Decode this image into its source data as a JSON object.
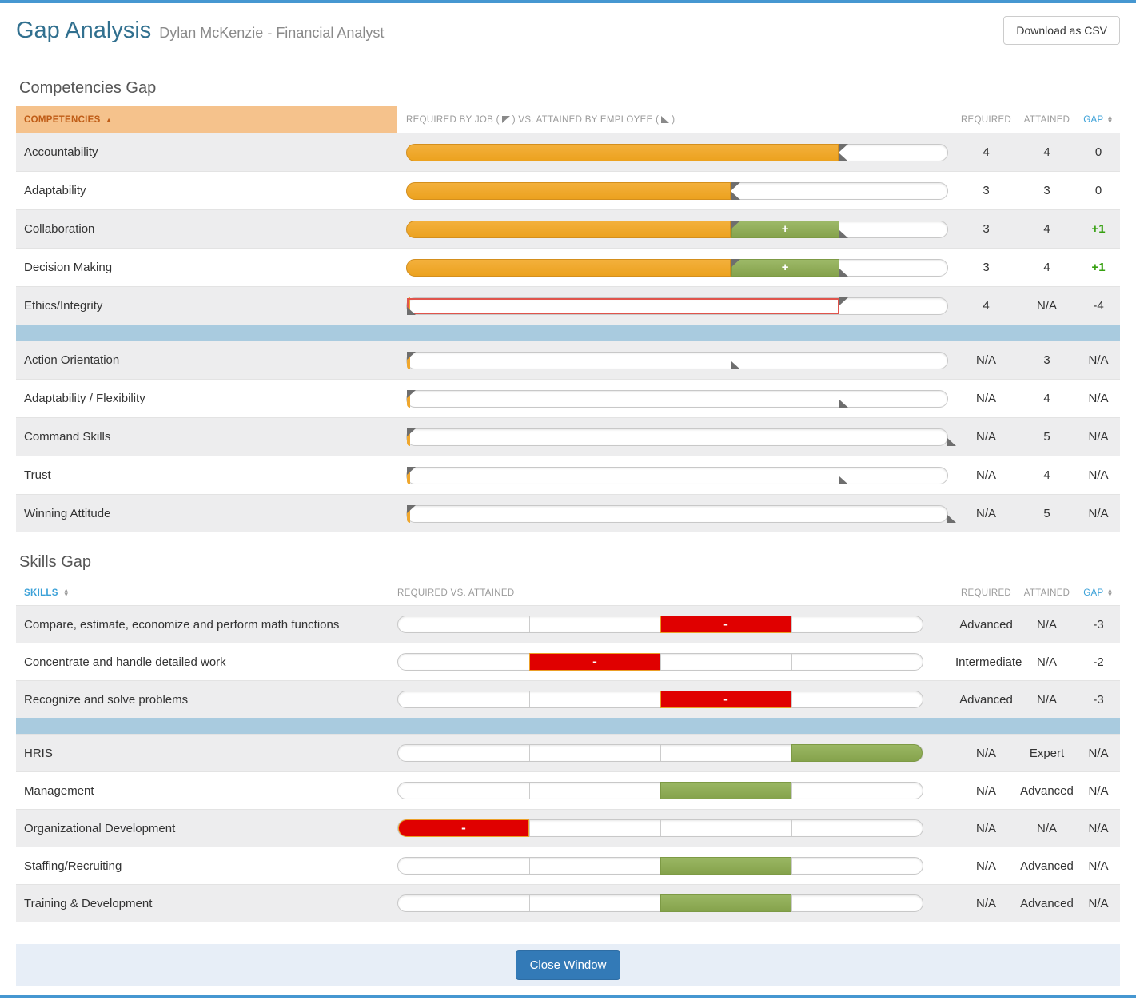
{
  "header": {
    "title": "Gap Analysis",
    "subtitle": "Dylan McKenzie - Financial Analyst",
    "download_label": "Download as CSV"
  },
  "competencies": {
    "section_title": "Competencies Gap",
    "col_name": "COMPETENCIES",
    "col_bar_pre": "REQUIRED BY JOB (",
    "col_bar_mid": ") VS. ATTAINED BY EMPLOYEE (",
    "col_bar_post": ")",
    "col_required": "REQUIRED",
    "col_attained": "ATTAINED",
    "col_gap": "GAP",
    "scale_max": 5,
    "rows": [
      {
        "name": "Accountability",
        "required": "4",
        "attained": "4",
        "gap": "0",
        "gap_positive": false,
        "bar": {
          "orange_to": 4,
          "req_flag": 4,
          "att_flag": 4
        }
      },
      {
        "name": "Adaptability",
        "required": "3",
        "attained": "3",
        "gap": "0",
        "gap_positive": false,
        "bar": {
          "orange_to": 3,
          "req_flag": 3,
          "att_flag": 3
        }
      },
      {
        "name": "Collaboration",
        "required": "3",
        "attained": "4",
        "gap": "+1",
        "gap_positive": true,
        "bar": {
          "orange_to": 3,
          "green_from": 3,
          "green_to": 4,
          "green_label": "+",
          "req_flag": 3,
          "att_flag": 4
        }
      },
      {
        "name": "Decision Making",
        "required": "3",
        "attained": "4",
        "gap": "+1",
        "gap_positive": true,
        "bar": {
          "orange_to": 3,
          "green_from": 3,
          "green_to": 4,
          "green_label": "+",
          "req_flag": 3,
          "att_flag": 4
        }
      },
      {
        "name": "Ethics/Integrity",
        "required": "4",
        "attained": "N/A",
        "gap": "-4",
        "gap_positive": false,
        "bar": {
          "sliver": true,
          "red_outline_to": 4,
          "req_flag": 4,
          "att_flag": 0
        }
      },
      {
        "divider": true
      },
      {
        "name": "Action Orientation",
        "required": "N/A",
        "attained": "3",
        "gap": "N/A",
        "gap_positive": false,
        "bar": {
          "sliver": true,
          "req_flag": 0,
          "att_flag": 3
        }
      },
      {
        "name": "Adaptability / Flexibility",
        "required": "N/A",
        "attained": "4",
        "gap": "N/A",
        "gap_positive": false,
        "bar": {
          "sliver": true,
          "req_flag": 0,
          "att_flag": 4
        }
      },
      {
        "name": "Command Skills",
        "required": "N/A",
        "attained": "5",
        "gap": "N/A",
        "gap_positive": false,
        "bar": {
          "sliver": true,
          "req_flag": 0,
          "att_flag": 5
        }
      },
      {
        "name": "Trust",
        "required": "N/A",
        "attained": "4",
        "gap": "N/A",
        "gap_positive": false,
        "bar": {
          "sliver": true,
          "req_flag": 0,
          "att_flag": 4
        }
      },
      {
        "name": "Winning Attitude",
        "required": "N/A",
        "attained": "5",
        "gap": "N/A",
        "gap_positive": false,
        "bar": {
          "sliver": true,
          "req_flag": 0,
          "att_flag": 5
        }
      }
    ]
  },
  "skills": {
    "section_title": "Skills Gap",
    "col_name": "SKILLS",
    "col_bar": "REQUIRED VS. ATTAINED",
    "col_required": "REQUIRED",
    "col_attained": "ATTAINED",
    "col_gap": "GAP",
    "segments": 4,
    "rows": [
      {
        "name": "Compare, estimate, economize and perform math functions",
        "required": "Advanced",
        "attained": "N/A",
        "gap": "-3",
        "gap_positive": false,
        "segment": {
          "index": 3,
          "color": "red",
          "label": "-"
        }
      },
      {
        "name": "Concentrate and handle detailed work",
        "required": "Intermediate",
        "attained": "N/A",
        "gap": "-2",
        "gap_positive": false,
        "segment": {
          "index": 2,
          "color": "red",
          "label": "-"
        }
      },
      {
        "name": "Recognize and solve problems",
        "required": "Advanced",
        "attained": "N/A",
        "gap": "-3",
        "gap_positive": false,
        "segment": {
          "index": 3,
          "color": "red",
          "label": "-"
        }
      },
      {
        "divider": true
      },
      {
        "name": "HRIS",
        "required": "N/A",
        "attained": "Expert",
        "gap": "N/A",
        "gap_positive": false,
        "segment": {
          "index": 4,
          "color": "green",
          "label": ""
        }
      },
      {
        "name": "Management",
        "required": "N/A",
        "attained": "Advanced",
        "gap": "N/A",
        "gap_positive": false,
        "segment": {
          "index": 3,
          "color": "green",
          "label": ""
        }
      },
      {
        "name": "Organizational Development",
        "required": "N/A",
        "attained": "N/A",
        "gap": "N/A",
        "gap_positive": false,
        "segment": {
          "index": 1,
          "color": "red",
          "label": "-"
        }
      },
      {
        "name": "Staffing/Recruiting",
        "required": "N/A",
        "attained": "Advanced",
        "gap": "N/A",
        "gap_positive": false,
        "segment": {
          "index": 3,
          "color": "green",
          "label": ""
        }
      },
      {
        "name": "Training & Development",
        "required": "N/A",
        "attained": "Advanced",
        "gap": "N/A",
        "gap_positive": false,
        "segment": {
          "index": 3,
          "color": "green",
          "label": ""
        }
      }
    ]
  },
  "footer": {
    "close_label": "Close Window"
  },
  "colors": {
    "accent_blue_border": "#4697d1",
    "title_blue": "#31708f",
    "header_orange_bg": "#f5c28c",
    "header_orange_text": "#bf5c16",
    "sort_blue": "#3ba1d8",
    "bar_orange": "#efa72e",
    "bar_green": "#8fae56",
    "bar_red": "#e00000",
    "red_outline": "#e0544c",
    "gap_positive_green": "#36a010",
    "divider_blue": "#a9cbdf",
    "row_stripe": "#ededee",
    "footer_bg": "#e7eef7",
    "button_blue": "#337ab7"
  }
}
